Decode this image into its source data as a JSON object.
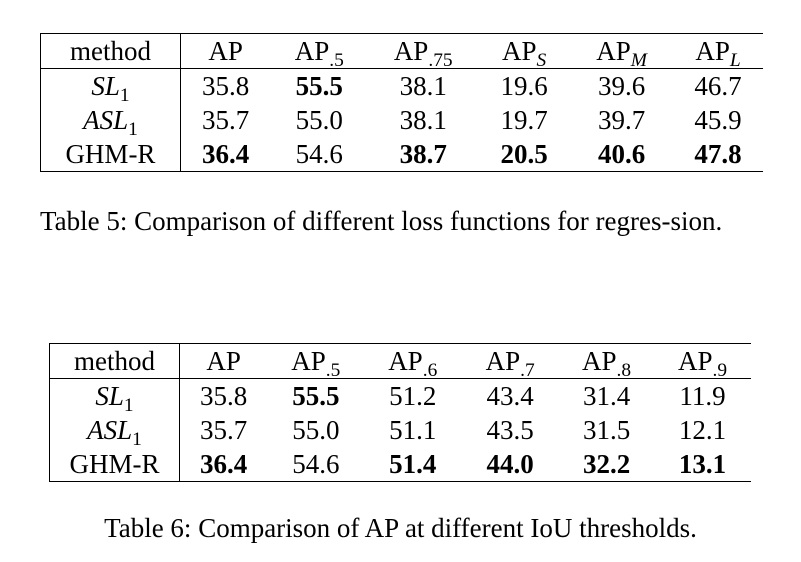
{
  "table5": {
    "header": [
      "method",
      "AP",
      "AP",
      "AP",
      "AP",
      "AP",
      "AP"
    ],
    "header_sub": [
      "",
      "",
      ".5",
      ".75",
      "S",
      "M",
      "L"
    ],
    "rows": [
      {
        "method": "SL",
        "method_sub": "1",
        "values": [
          "35.8",
          "55.5",
          "38.1",
          "19.6",
          "39.6",
          "46.7"
        ],
        "bold": [
          false,
          true,
          false,
          false,
          false,
          false
        ]
      },
      {
        "method": "ASL",
        "method_sub": "1",
        "values": [
          "35.7",
          "55.0",
          "38.1",
          "19.7",
          "39.7",
          "45.9"
        ],
        "bold": [
          false,
          false,
          false,
          false,
          false,
          false
        ]
      },
      {
        "method": "GHM-R",
        "method_sub": "",
        "values": [
          "36.4",
          "54.6",
          "38.7",
          "20.5",
          "40.6",
          "47.8"
        ],
        "bold": [
          true,
          false,
          true,
          true,
          true,
          true
        ]
      }
    ],
    "caption": "Table 5: Comparison of different loss functions for regres-sion."
  },
  "table6": {
    "header": [
      "method",
      "AP",
      "AP",
      "AP",
      "AP",
      "AP",
      "AP"
    ],
    "header_sub": [
      "",
      "",
      ".5",
      ".6",
      ".7",
      ".8",
      ".9"
    ],
    "rows": [
      {
        "method": "SL",
        "method_sub": "1",
        "values": [
          "35.8",
          "55.5",
          "51.2",
          "43.4",
          "31.4",
          "11.9"
        ],
        "bold": [
          false,
          true,
          false,
          false,
          false,
          false
        ]
      },
      {
        "method": "ASL",
        "method_sub": "1",
        "values": [
          "35.7",
          "55.0",
          "51.1",
          "43.5",
          "31.5",
          "12.1"
        ],
        "bold": [
          false,
          false,
          false,
          false,
          false,
          false
        ]
      },
      {
        "method": "GHM-R",
        "method_sub": "",
        "values": [
          "36.4",
          "54.6",
          "51.4",
          "44.0",
          "32.2",
          "13.1"
        ],
        "bold": [
          true,
          false,
          true,
          true,
          true,
          true
        ]
      }
    ],
    "caption": "Table 6: Comparison of AP at different IoU thresholds."
  }
}
